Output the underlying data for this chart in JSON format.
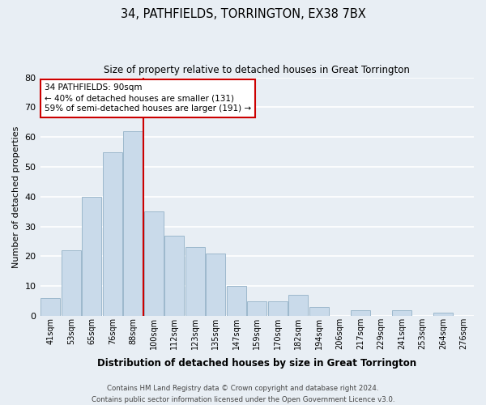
{
  "title": "34, PATHFIELDS, TORRINGTON, EX38 7BX",
  "subtitle": "Size of property relative to detached houses in Great Torrington",
  "xlabel": "Distribution of detached houses by size in Great Torrington",
  "ylabel": "Number of detached properties",
  "bar_labels": [
    "41sqm",
    "53sqm",
    "65sqm",
    "76sqm",
    "88sqm",
    "100sqm",
    "112sqm",
    "123sqm",
    "135sqm",
    "147sqm",
    "159sqm",
    "170sqm",
    "182sqm",
    "194sqm",
    "206sqm",
    "217sqm",
    "229sqm",
    "241sqm",
    "253sqm",
    "264sqm",
    "276sqm"
  ],
  "bar_values": [
    6,
    22,
    40,
    55,
    62,
    35,
    27,
    23,
    21,
    10,
    5,
    5,
    7,
    3,
    0,
    2,
    0,
    2,
    0,
    1,
    0
  ],
  "bar_color": "#c9daea",
  "bar_edge_color": "#9db8cc",
  "vline_x_index": 4,
  "vline_color": "#cc0000",
  "ylim": [
    0,
    80
  ],
  "yticks": [
    0,
    10,
    20,
    30,
    40,
    50,
    60,
    70,
    80
  ],
  "annotation_box_text": "34 PATHFIELDS: 90sqm\n← 40% of detached houses are smaller (131)\n59% of semi-detached houses are larger (191) →",
  "annotation_box_edge_color": "#cc0000",
  "footer_line1": "Contains HM Land Registry data © Crown copyright and database right 2024.",
  "footer_line2": "Contains public sector information licensed under the Open Government Licence v3.0.",
  "background_color": "#e8eef4",
  "grid_color": "#ffffff"
}
